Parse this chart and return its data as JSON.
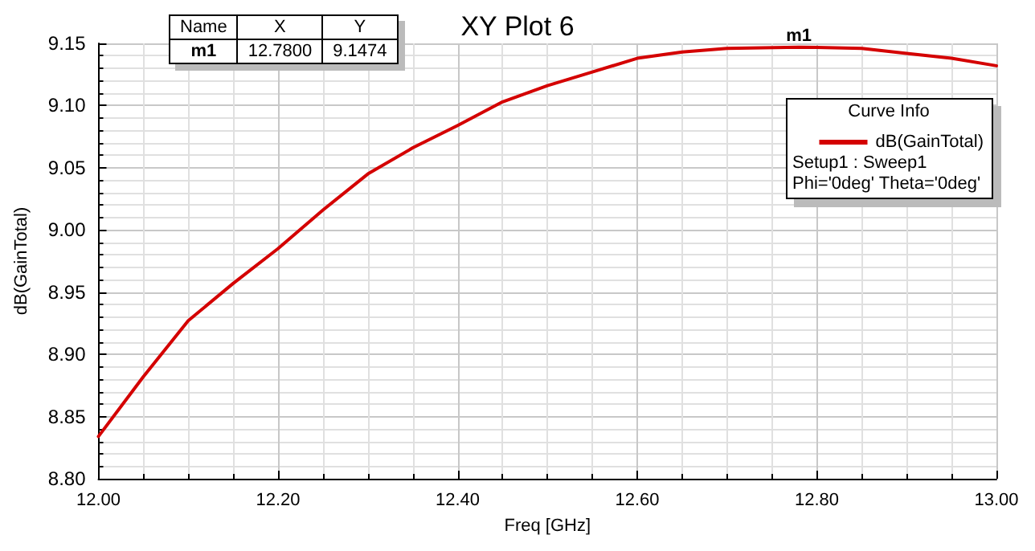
{
  "chart_data": {
    "type": "line",
    "title": "XY Plot 6",
    "xlabel": "Freq [GHz]",
    "ylabel": "dB(GainTotal)",
    "legend_title": "Curve Info",
    "annotations": [
      {
        "text": "m1",
        "x": 12.78,
        "y": 9.1474
      },
      "Name",
      "X",
      "Y",
      "m1",
      "12.7800",
      "9.1474",
      "Setup1 : Sweep1",
      "Phi='0deg' Theta='0deg'"
    ],
    "x": [
      12.0,
      12.05,
      12.1,
      12.15,
      12.2,
      12.25,
      12.3,
      12.35,
      12.4,
      12.45,
      12.5,
      12.55,
      12.6,
      12.65,
      12.7,
      12.78,
      12.85,
      12.9,
      12.95,
      13.0
    ],
    "series": [
      {
        "name": "dB(GainTotal)",
        "color": "#d40000",
        "values": [
          8.834,
          8.882,
          8.927,
          8.957,
          8.985,
          9.016,
          9.045,
          9.066,
          9.084,
          9.103,
          9.116,
          9.127,
          9.138,
          9.143,
          9.146,
          9.147,
          9.146,
          9.142,
          9.138,
          9.132
        ]
      }
    ],
    "xlim": [
      12.0,
      13.0
    ],
    "xticks": [
      {
        "value": 12.0,
        "label": "12.00"
      },
      {
        "value": 12.2,
        "label": "12.20"
      },
      {
        "value": 12.4,
        "label": "12.40"
      },
      {
        "value": 12.6,
        "label": "12.60"
      },
      {
        "value": 12.8,
        "label": "12.80"
      },
      {
        "value": 13.0,
        "label": "13.00"
      }
    ],
    "ylim": [
      8.8,
      9.15
    ],
    "yticks": [
      {
        "value": 8.8,
        "label": "8.80"
      },
      {
        "value": 8.85,
        "label": "8.85"
      },
      {
        "value": 8.9,
        "label": "8.90"
      },
      {
        "value": 8.95,
        "label": "8.95"
      },
      {
        "value": 9.0,
        "label": "9.00"
      },
      {
        "value": 9.05,
        "label": "9.05"
      },
      {
        "value": 9.1,
        "label": "9.10"
      },
      {
        "value": 9.15,
        "label": "9.15"
      }
    ],
    "grid": true,
    "legend": "top right",
    "marker": "none",
    "line_style": "solid"
  }
}
